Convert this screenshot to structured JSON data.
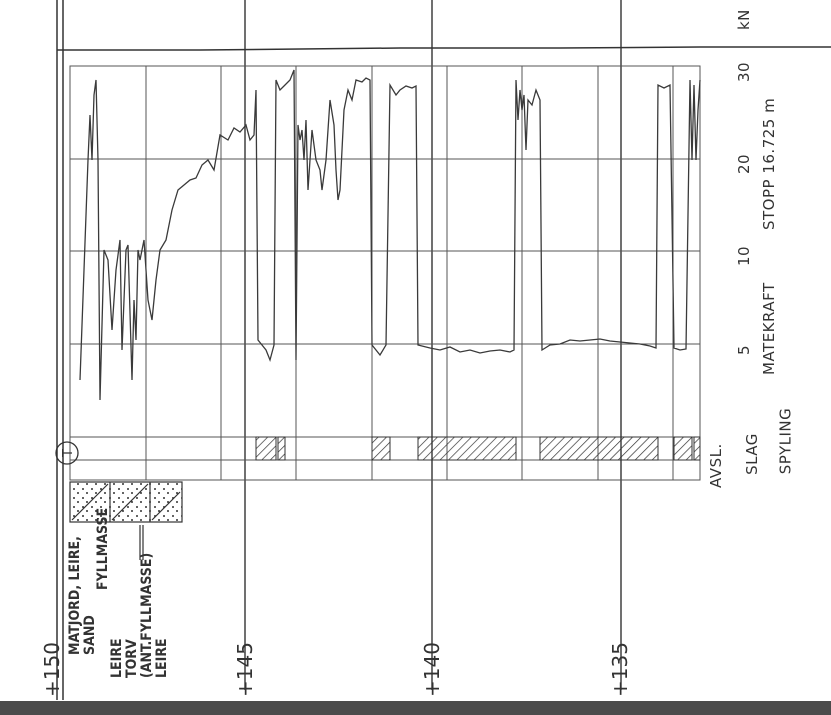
{
  "elevations": [
    "+150",
    "+145",
    "+140",
    "+135"
  ],
  "soil_layers": [
    [
      "MATJORD, LEIRE,",
      "SAND"
    ],
    [
      "LEIRE",
      "TORV",
      "(ANT.FYLLMASSE)",
      "LEIRE"
    ]
  ],
  "fyllmasse_label": "FYLLMASSE",
  "scale": {
    "ticks": [
      "5",
      "10",
      "20",
      "30"
    ],
    "unit": "kN",
    "stop_label": "STOPP 16.725 m",
    "axis_label": "MATEKRAFT"
  },
  "columns": {
    "avsl": "AVSL.",
    "slag": "SLAG",
    "spyling": "SPYLING"
  },
  "symbol": "T",
  "colors": {
    "line": "#3a3a3a",
    "grid": "#555555",
    "bar": "#4b4b4b"
  }
}
